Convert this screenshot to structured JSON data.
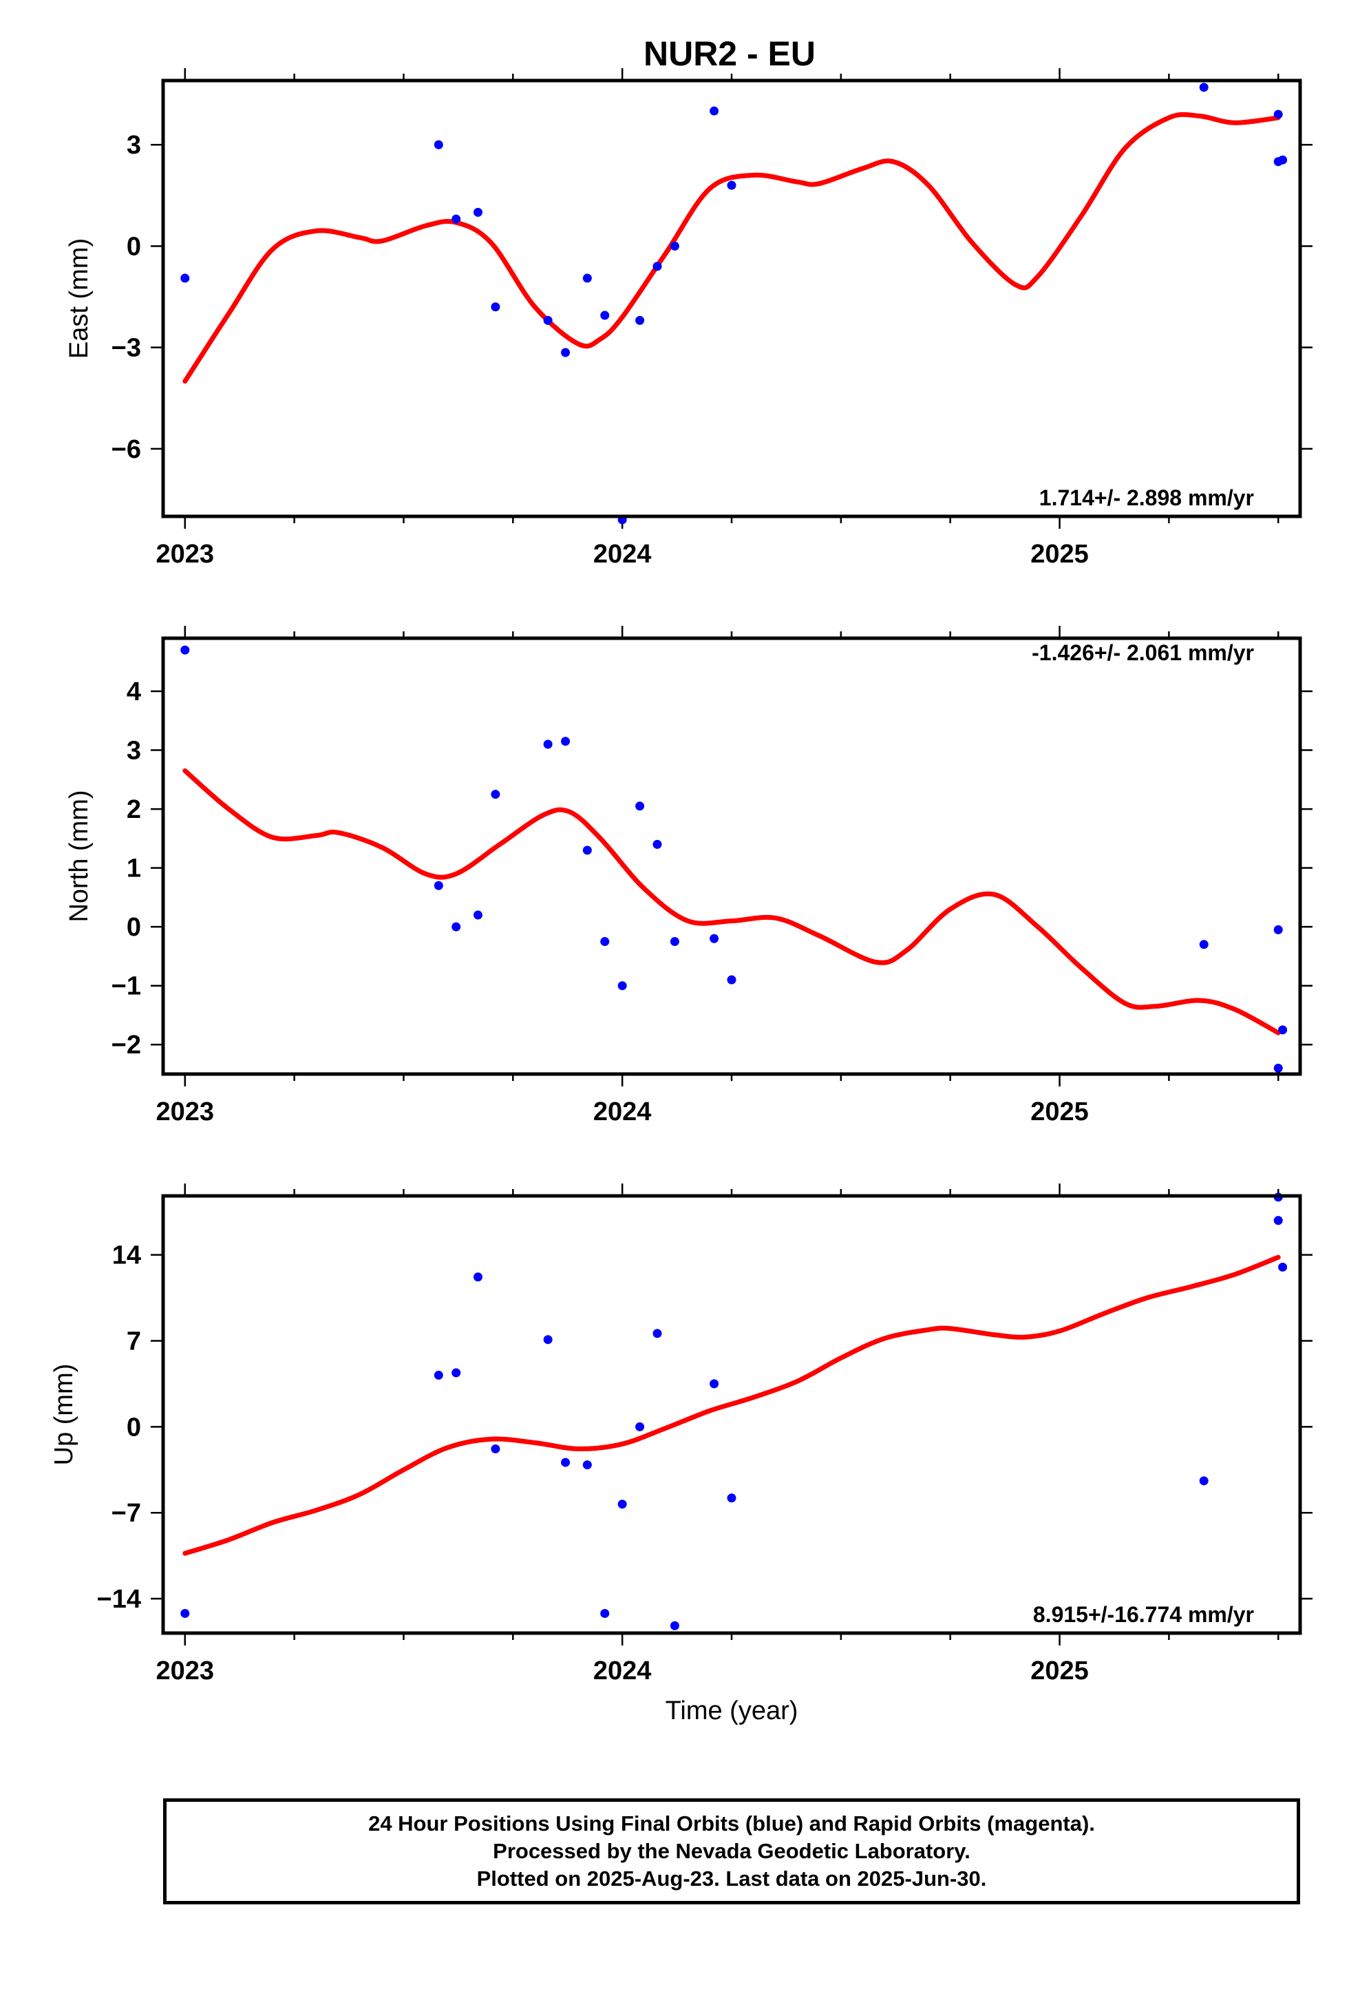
{
  "title": "NUR2 - EU",
  "footer": {
    "lines": [
      "24 Hour Positions Using Final Orbits (blue) and Rapid Orbits (magenta).",
      "Processed by the Nevada Geodetic Laboratory.",
      "Plotted on 2025-Aug-23. Last data on 2025-Jun-30."
    ]
  },
  "colors": {
    "points": "#0000ff",
    "fit": "#ff0000",
    "frame": "#000000"
  },
  "chart_data": [
    {
      "type": "scatter",
      "name": "east",
      "title": "NUR2 - EU",
      "ylabel": "East (mm)",
      "xlabel": "",
      "rate_label": "1.714+/- 2.898 mm/yr",
      "rate_position": "bottom-right",
      "xlim": [
        2022.95,
        2025.55
      ],
      "ylim": [
        -8.0,
        4.9
      ],
      "x_ticks": [
        2023,
        2024,
        2025
      ],
      "x_tick_labels": [
        "2023",
        "2024",
        "2025"
      ],
      "y_ticks": [
        3,
        0,
        -3,
        -6
      ],
      "y_tick_labels": [
        "3",
        "0",
        "−3",
        "−6"
      ],
      "points": [
        [
          2023.0,
          -0.95
        ],
        [
          2023.58,
          3.0
        ],
        [
          2023.62,
          0.8
        ],
        [
          2023.67,
          1.0
        ],
        [
          2023.71,
          -1.8
        ],
        [
          2023.83,
          -2.2
        ],
        [
          2023.87,
          -3.15
        ],
        [
          2023.92,
          -0.95
        ],
        [
          2023.96,
          -2.05
        ],
        [
          2024.0,
          -8.1
        ],
        [
          2024.04,
          -2.2
        ],
        [
          2024.08,
          -0.6
        ],
        [
          2024.12,
          0.0
        ],
        [
          2024.21,
          4.0
        ],
        [
          2024.25,
          1.8
        ],
        [
          2025.33,
          4.7
        ],
        [
          2025.5,
          2.5
        ],
        [
          2025.5,
          3.9
        ],
        [
          2025.51,
          2.55
        ]
      ],
      "fit": [
        [
          2023.0,
          -4.0
        ],
        [
          2023.1,
          -2.0
        ],
        [
          2023.2,
          -0.1
        ],
        [
          2023.3,
          0.45
        ],
        [
          2023.4,
          0.25
        ],
        [
          2023.45,
          0.15
        ],
        [
          2023.55,
          0.6
        ],
        [
          2023.62,
          0.7
        ],
        [
          2023.7,
          0.1
        ],
        [
          2023.8,
          -1.8
        ],
        [
          2023.9,
          -2.9
        ],
        [
          2023.95,
          -2.75
        ],
        [
          2024.0,
          -2.1
        ],
        [
          2024.1,
          -0.2
        ],
        [
          2024.2,
          1.7
        ],
        [
          2024.3,
          2.1
        ],
        [
          2024.4,
          1.9
        ],
        [
          2024.45,
          1.85
        ],
        [
          2024.55,
          2.3
        ],
        [
          2024.62,
          2.5
        ],
        [
          2024.7,
          1.8
        ],
        [
          2024.8,
          0.1
        ],
        [
          2024.9,
          -1.15
        ],
        [
          2024.95,
          -0.9
        ],
        [
          2025.05,
          0.9
        ],
        [
          2025.15,
          2.9
        ],
        [
          2025.25,
          3.8
        ],
        [
          2025.32,
          3.85
        ],
        [
          2025.4,
          3.65
        ],
        [
          2025.5,
          3.8
        ]
      ]
    },
    {
      "type": "scatter",
      "name": "north",
      "ylabel": "North (mm)",
      "xlabel": "",
      "rate_label": "-1.426+/- 2.061 mm/yr",
      "rate_position": "top-right",
      "xlim": [
        2022.95,
        2025.55
      ],
      "ylim": [
        -2.5,
        4.9
      ],
      "x_ticks": [
        2023,
        2024,
        2025
      ],
      "x_tick_labels": [
        "2023",
        "2024",
        "2025"
      ],
      "y_ticks": [
        4,
        3,
        2,
        1,
        0,
        -1,
        -2
      ],
      "y_tick_labels": [
        "4",
        "3",
        "2",
        "1",
        "0",
        "−1",
        "−2"
      ],
      "points": [
        [
          2023.0,
          4.7
        ],
        [
          2023.58,
          0.7
        ],
        [
          2023.62,
          0.0
        ],
        [
          2023.67,
          0.2
        ],
        [
          2023.71,
          2.25
        ],
        [
          2023.83,
          3.1
        ],
        [
          2023.87,
          3.15
        ],
        [
          2023.92,
          1.3
        ],
        [
          2023.96,
          -0.25
        ],
        [
          2024.0,
          -1.0
        ],
        [
          2024.04,
          2.05
        ],
        [
          2024.08,
          1.4
        ],
        [
          2024.12,
          -0.25
        ],
        [
          2024.21,
          -0.2
        ],
        [
          2024.25,
          -0.9
        ],
        [
          2025.33,
          -0.3
        ],
        [
          2025.5,
          -0.05
        ],
        [
          2025.5,
          -2.4
        ],
        [
          2025.51,
          -1.75
        ]
      ],
      "fit": [
        [
          2023.0,
          2.65
        ],
        [
          2023.1,
          2.0
        ],
        [
          2023.2,
          1.52
        ],
        [
          2023.3,
          1.55
        ],
        [
          2023.35,
          1.6
        ],
        [
          2023.45,
          1.35
        ],
        [
          2023.55,
          0.9
        ],
        [
          2023.62,
          0.9
        ],
        [
          2023.72,
          1.4
        ],
        [
          2023.82,
          1.9
        ],
        [
          2023.88,
          1.95
        ],
        [
          2023.95,
          1.5
        ],
        [
          2024.05,
          0.65
        ],
        [
          2024.15,
          0.1
        ],
        [
          2024.25,
          0.1
        ],
        [
          2024.35,
          0.15
        ],
        [
          2024.45,
          -0.15
        ],
        [
          2024.58,
          -0.6
        ],
        [
          2024.65,
          -0.4
        ],
        [
          2024.75,
          0.3
        ],
        [
          2024.85,
          0.55
        ],
        [
          2024.95,
          0.0
        ],
        [
          2025.05,
          -0.7
        ],
        [
          2025.15,
          -1.3
        ],
        [
          2025.22,
          -1.35
        ],
        [
          2025.32,
          -1.25
        ],
        [
          2025.4,
          -1.4
        ],
        [
          2025.5,
          -1.8
        ]
      ]
    },
    {
      "type": "scatter",
      "name": "up",
      "ylabel": "Up (mm)",
      "xlabel": "Time (year)",
      "rate_label": "8.915+/-16.774 mm/yr",
      "rate_position": "bottom-right",
      "xlim": [
        2022.95,
        2025.55
      ],
      "ylim": [
        -16.8,
        18.8
      ],
      "x_ticks": [
        2023,
        2024,
        2025
      ],
      "x_tick_labels": [
        "2023",
        "2024",
        "2025"
      ],
      "y_ticks": [
        14,
        7,
        0,
        -7,
        -14
      ],
      "y_tick_labels": [
        "14",
        "7",
        "0",
        "−7",
        "−14"
      ],
      "points": [
        [
          2023.0,
          -15.2
        ],
        [
          2023.58,
          4.2
        ],
        [
          2023.62,
          4.4
        ],
        [
          2023.67,
          12.2
        ],
        [
          2023.71,
          -1.8
        ],
        [
          2023.83,
          7.1
        ],
        [
          2023.87,
          -2.9
        ],
        [
          2023.92,
          -3.1
        ],
        [
          2023.96,
          -15.2
        ],
        [
          2024.0,
          -6.3
        ],
        [
          2024.04,
          0.0
        ],
        [
          2024.08,
          7.6
        ],
        [
          2024.12,
          -16.2
        ],
        [
          2024.21,
          3.5
        ],
        [
          2024.25,
          -5.8
        ],
        [
          2025.33,
          -4.4
        ],
        [
          2025.5,
          18.7
        ],
        [
          2025.5,
          16.8
        ],
        [
          2025.51,
          13.0
        ]
      ],
      "fit": [
        [
          2023.0,
          -10.3
        ],
        [
          2023.1,
          -9.2
        ],
        [
          2023.2,
          -7.8
        ],
        [
          2023.3,
          -6.8
        ],
        [
          2023.4,
          -5.5
        ],
        [
          2023.5,
          -3.5
        ],
        [
          2023.6,
          -1.7
        ],
        [
          2023.7,
          -1.0
        ],
        [
          2023.8,
          -1.3
        ],
        [
          2023.9,
          -1.8
        ],
        [
          2024.0,
          -1.4
        ],
        [
          2024.1,
          -0.1
        ],
        [
          2024.2,
          1.3
        ],
        [
          2024.3,
          2.4
        ],
        [
          2024.4,
          3.7
        ],
        [
          2024.5,
          5.6
        ],
        [
          2024.6,
          7.2
        ],
        [
          2024.7,
          7.9
        ],
        [
          2024.75,
          8.0
        ],
        [
          2024.85,
          7.5
        ],
        [
          2024.92,
          7.3
        ],
        [
          2025.0,
          7.8
        ],
        [
          2025.1,
          9.2
        ],
        [
          2025.2,
          10.5
        ],
        [
          2025.3,
          11.4
        ],
        [
          2025.4,
          12.4
        ],
        [
          2025.5,
          13.8
        ]
      ]
    }
  ]
}
